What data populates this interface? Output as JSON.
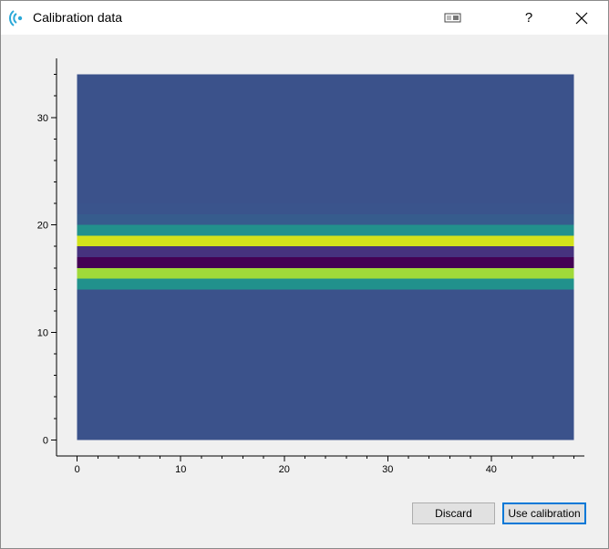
{
  "window": {
    "title": "Calibration data",
    "help_glyph": "?",
    "close_glyph": "✕"
  },
  "buttons": {
    "discard": "Discard",
    "use_calibration": "Use calibration"
  },
  "chart_data": {
    "type": "heatmap",
    "title": "",
    "xlabel": "",
    "ylabel": "",
    "xlim": [
      -2,
      49
    ],
    "ylim": [
      -1.5,
      35.5
    ],
    "x_extent": [
      0,
      48
    ],
    "y_extent": [
      0,
      34
    ],
    "x_ticks": [
      0,
      10,
      20,
      30,
      40
    ],
    "y_ticks": [
      0,
      10,
      20,
      30
    ],
    "colormap": "viridis",
    "rows": [
      {
        "y0": 0,
        "y1": 14,
        "color": "#3b528b"
      },
      {
        "y0": 14,
        "y1": 15,
        "color": "#21918c"
      },
      {
        "y0": 15,
        "y1": 16,
        "color": "#a0da39"
      },
      {
        "y0": 16,
        "y1": 17,
        "color": "#440154"
      },
      {
        "y0": 17,
        "y1": 18,
        "color": "#46327e"
      },
      {
        "y0": 18,
        "y1": 19,
        "color": "#d2e21b"
      },
      {
        "y0": 19,
        "y1": 20,
        "color": "#21918c"
      },
      {
        "y0": 20,
        "y1": 21,
        "color": "#365c8d"
      },
      {
        "y0": 21,
        "y1": 22,
        "color": "#3a548c"
      },
      {
        "y0": 22,
        "y1": 34,
        "color": "#3b528b"
      }
    ]
  }
}
